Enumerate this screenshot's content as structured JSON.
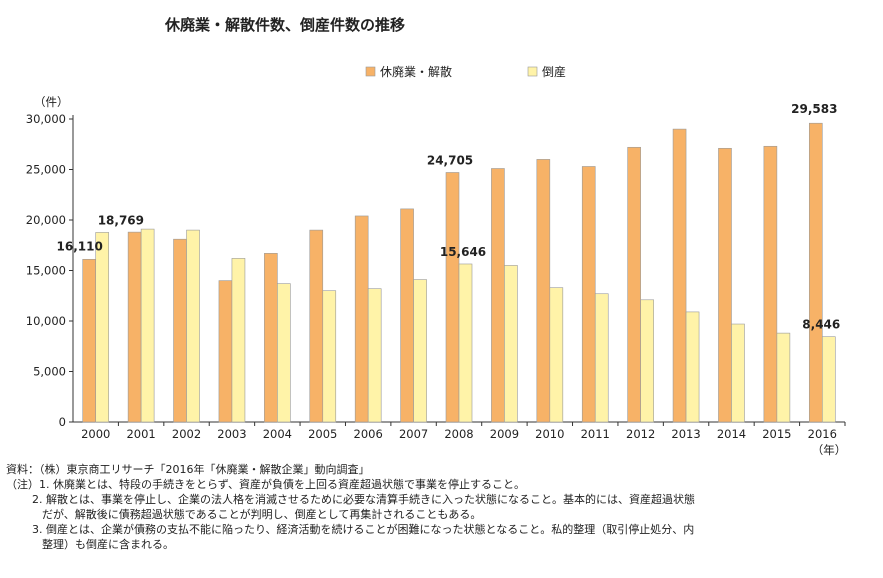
{
  "title": "休廃業・解散件数、倒産件数の推移",
  "chart_data": {
    "type": "bar",
    "title": "休廃業・解散件数、倒産件数の推移",
    "categories": [
      "2000",
      "2001",
      "2002",
      "2003",
      "2004",
      "2005",
      "2006",
      "2007",
      "2008",
      "2009",
      "2010",
      "2011",
      "2012",
      "2013",
      "2014",
      "2015",
      "2016"
    ],
    "series": [
      {
        "name": "休廃業・解散",
        "color": "#f7b267",
        "values": [
          16110,
          18800,
          18100,
          14000,
          16700,
          19000,
          20400,
          21100,
          24705,
          25100,
          26000,
          25300,
          27200,
          29000,
          27100,
          27300,
          29583
        ]
      },
      {
        "name": "倒産",
        "color": "#fff3a8",
        "values": [
          18769,
          19100,
          19000,
          16200,
          13700,
          13000,
          13200,
          14100,
          15646,
          15500,
          13300,
          12700,
          12100,
          10900,
          9700,
          8800,
          8446
        ]
      }
    ],
    "ylabel": "（件）",
    "xlabel": "（年）",
    "ylim": [
      0,
      30000
    ],
    "yticks": [
      0,
      5000,
      10000,
      15000,
      20000,
      25000,
      30000
    ],
    "ytick_labels": [
      "0",
      "5,000",
      "10,000",
      "15,000",
      "20,000",
      "25,000",
      "30,000"
    ],
    "data_labels": [
      {
        "series": 0,
        "index": 0,
        "text": "16,110"
      },
      {
        "series": 1,
        "index": 0,
        "text": "18,769"
      },
      {
        "series": 0,
        "index": 8,
        "text": "24,705"
      },
      {
        "series": 1,
        "index": 8,
        "text": "15,646"
      },
      {
        "series": 0,
        "index": 16,
        "text": "29,583"
      },
      {
        "series": 1,
        "index": 16,
        "text": "8,446"
      }
    ],
    "legend_position": "top-center",
    "grid": false
  },
  "notes": {
    "source": "資料：（株）東京商工リサーチ「2016年「休廃業・解散企業」動向調査」",
    "note1": "（注）1. 休廃業とは、特段の手続きをとらず、資産が負債を上回る資産超過状態で事業を停止すること。",
    "note2a": "2. 解散とは、事業を停止し、企業の法人格を消滅させるために必要な清算手続きに入った状態になること。基本的には、資産超過状態",
    "note2b": "だが、解散後に債務超過状態であることが判明し、倒産として再集計されることもある。",
    "note3a": "3. 倒産とは、企業が債務の支払不能に陥ったり、経済活動を続けることが困難になった状態となること。私的整理（取引停止処分、内",
    "note3b": "整理）も倒産に含まれる。"
  }
}
